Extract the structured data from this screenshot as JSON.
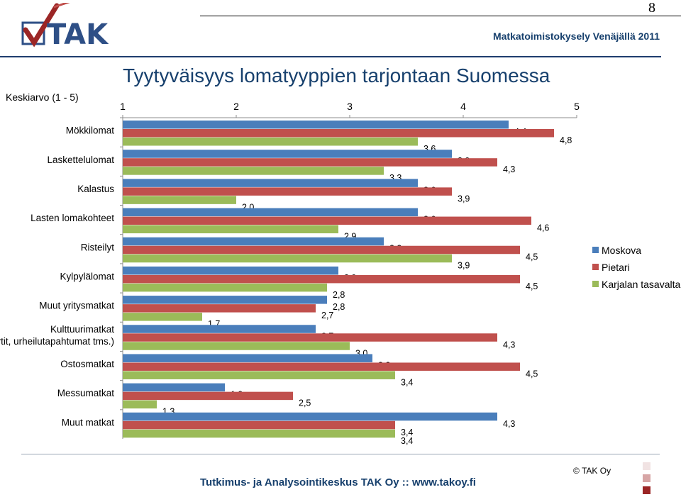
{
  "page_number": "8",
  "header_subtitle": "Matkatoimistokysely Venäjällä 2011",
  "logo_text": "TAK",
  "footer": {
    "text": "Tutkimus- ja Analysointikeskus TAK Oy   ::   www.takoy.fi",
    "copyright": "© TAK Oy"
  },
  "colors": {
    "title": "#17406d",
    "moskova": "#4a7ebb",
    "pietari": "#c0504d",
    "karjala": "#9bbb59"
  },
  "chart_data": {
    "type": "bar",
    "orientation": "horizontal",
    "title": "Tyytyväisyys lomatyyppien tarjontaan Suomessa",
    "ylabel": "Keskiarvo (1 - 5)",
    "xlim": [
      1,
      5
    ],
    "x_ticks": [
      "1",
      "2",
      "3",
      "4",
      "5"
    ],
    "legend_position": "right",
    "categories": [
      "Mökkilomat",
      "Laskettelulomat",
      "Kalastus",
      "Lasten lomakohteet",
      "Risteilyt",
      "Kylpylälomat",
      "Muut yritysmatkat",
      "Kulttuurimatkat (konsertit, urheilutapahtumat tms.)",
      "Ostosmatkat",
      "Messumatkat",
      "Muut matkat"
    ],
    "series": [
      {
        "name": "Moskova",
        "values": [
          4.4,
          3.9,
          3.6,
          3.6,
          3.3,
          2.9,
          2.8,
          2.7,
          3.2,
          1.9,
          4.3
        ],
        "labels": [
          "4,4",
          "3,9",
          "3,6",
          "3,6",
          "3,3",
          "2,9",
          "2,8",
          "2,7",
          "3,2",
          "1,9",
          "4,3"
        ]
      },
      {
        "name": "Pietari",
        "values": [
          4.8,
          4.3,
          3.9,
          4.6,
          4.5,
          4.5,
          2.7,
          4.3,
          4.5,
          2.5,
          3.4
        ],
        "labels": [
          "4,8",
          "4,3",
          "3,9",
          "4,6",
          "4,5",
          "4,5",
          "2,7",
          "4,3",
          "4,5",
          "2,5",
          "3,4"
        ]
      },
      {
        "name": "Karjalan tasavalta",
        "values": [
          3.6,
          3.3,
          2.0,
          2.9,
          3.9,
          2.8,
          1.7,
          3.0,
          3.4,
          1.3,
          3.4
        ],
        "labels": [
          "3,6",
          "3,3",
          "2,0",
          "2,9",
          "3,9",
          "2,8",
          "1,7",
          "3,0",
          "3,4",
          "1,3",
          "3,4"
        ]
      }
    ]
  }
}
